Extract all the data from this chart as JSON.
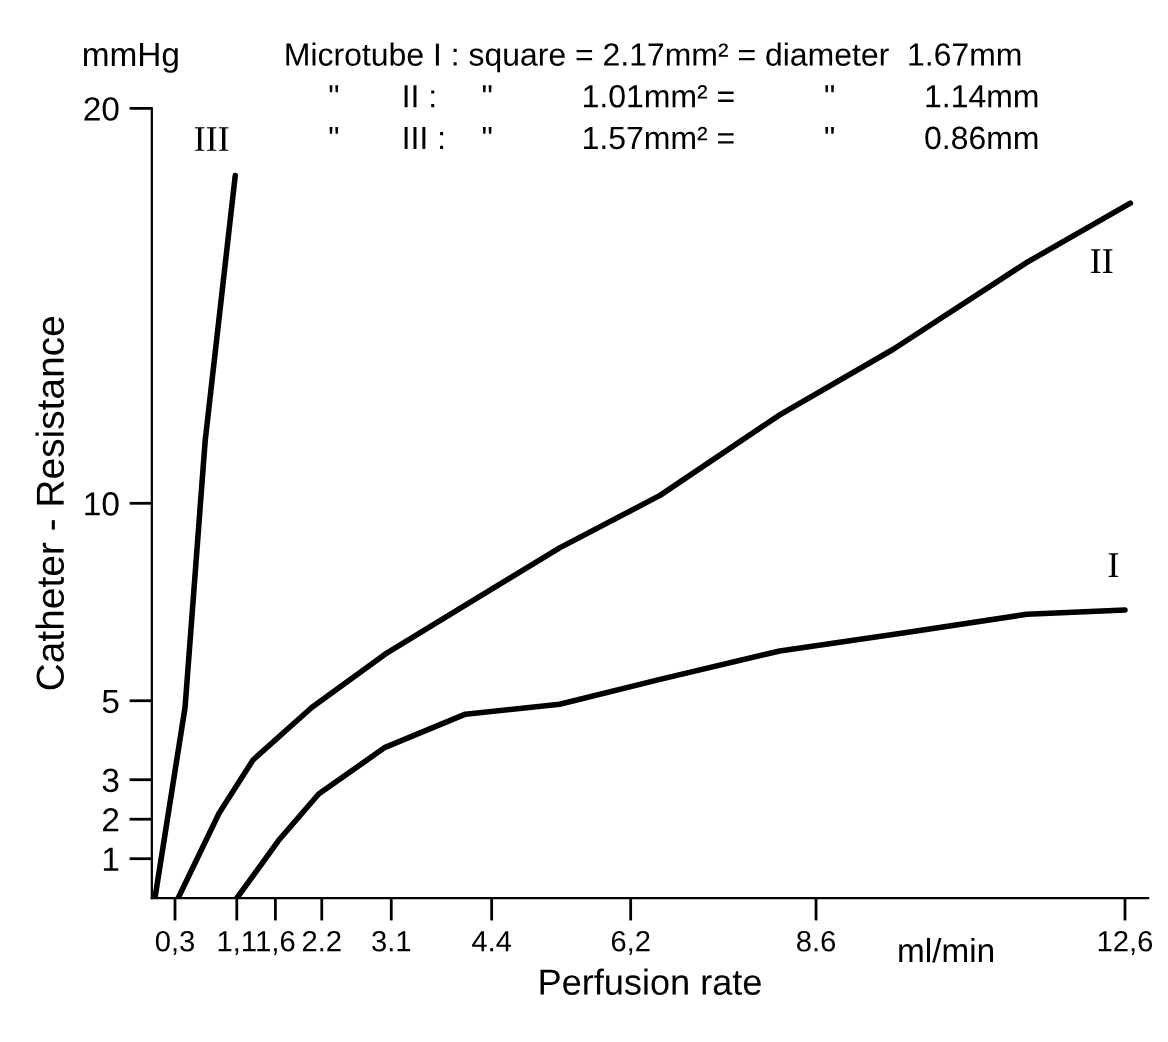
{
  "chart_data": {
    "type": "line",
    "xlabel": "Perfusion rate",
    "ylabel": "Catheter - Resistance",
    "series": [
      {
        "name": "I",
        "color": "#000000",
        "x": [
          1.1,
          1.64,
          2.16,
          3.02,
          4.06,
          5.28,
          6.58,
          8.13,
          9.77,
          11.33,
          12.6
        ],
        "values": [
          0,
          1.46,
          2.64,
          3.82,
          4.66,
          4.91,
          5.54,
          6.26,
          6.73,
          7.19,
          7.3
        ]
      },
      {
        "name": "II",
        "color": "#000000",
        "x": [
          0.34,
          0.87,
          1.31,
          2.07,
          3.02,
          4.15,
          5.28,
          6.58,
          8.13,
          9.6,
          11.33,
          12.67
        ],
        "values": [
          0,
          2.15,
          3.5,
          4.83,
          6.18,
          7.53,
          8.87,
          10.2,
          12.24,
          13.9,
          16.1,
          17.6
        ]
      },
      {
        "name": "III",
        "color": "#000000",
        "x": [
          0.04,
          0.43,
          0.69,
          1.08
        ],
        "values": [
          0,
          4.83,
          11.57,
          18.3
        ]
      }
    ],
    "xlim": [
      0,
      12.9
    ],
    "xticks": [
      {
        "value": 0.3,
        "label": "0,3"
      },
      {
        "value": 1.1,
        "label": "1,1"
      },
      {
        "value": 1.6,
        "label": "1,6"
      },
      {
        "value": 2.2,
        "label": "2.2"
      },
      {
        "value": 3.1,
        "label": "3.1"
      },
      {
        "value": 4.4,
        "label": "4.4"
      },
      {
        "value": 6.2,
        "label": "6,2"
      },
      {
        "value": 8.6,
        "label": "8.6"
      },
      {
        "value": 12.6,
        "label": "12,6"
      }
    ],
    "ylim": [
      0,
      20
    ],
    "yticks": [
      1,
      2,
      3,
      5,
      10,
      20
    ],
    "annotations": [
      "mmHg",
      "ml/min",
      "Microtube I : square = 2.17mm² = diameter  1.67mm",
      "     \"       II :     \"          1.01mm² =          \"          1.14mm",
      "     \"       III :    \"          1.57mm² =          \"          0.86mm"
    ]
  }
}
